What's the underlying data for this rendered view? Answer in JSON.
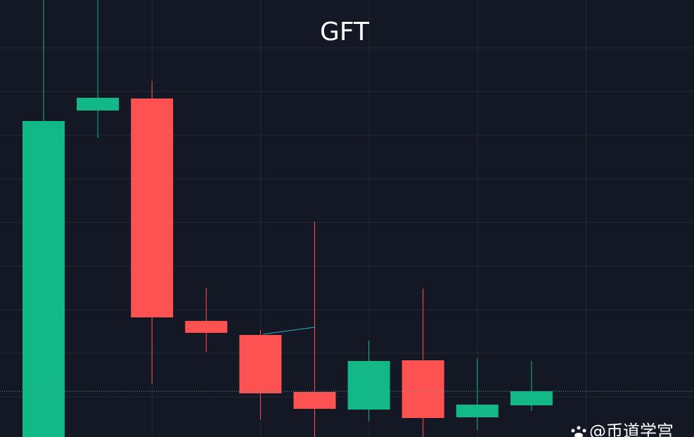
{
  "chart_data": {
    "type": "candlestick",
    "title": "GFT",
    "open": [
      0,
      464,
      481,
      165,
      145,
      64,
      39,
      109,
      28,
      45
    ],
    "high": [
      630,
      630,
      506,
      212,
      152,
      306,
      137,
      211,
      112,
      108
    ],
    "low": [
      0,
      425,
      76,
      121,
      25,
      0,
      23,
      0,
      10,
      37
    ],
    "close": [
      449,
      482,
      170,
      148,
      62,
      40,
      108,
      27,
      46,
      65
    ],
    "up_color": "#12b886",
    "down_color": "#fe5252",
    "ylim": [
      0,
      621
    ],
    "grid": true,
    "watermark": "@币道学宫"
  }
}
